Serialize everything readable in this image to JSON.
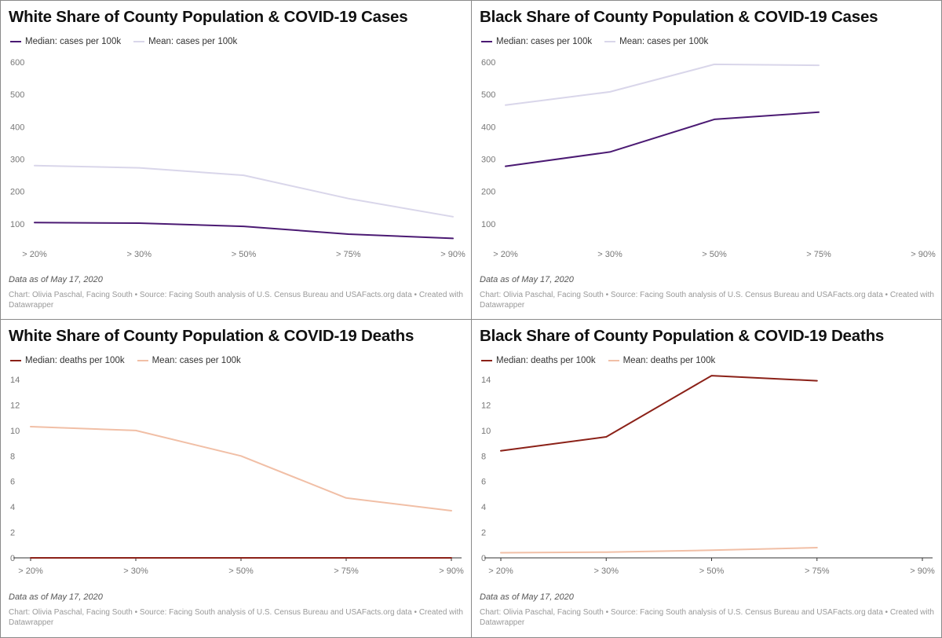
{
  "chart_data": [
    {
      "type": "line",
      "title": "White Share of County Population & COVID-19 Cases",
      "categories": [
        "> 20%",
        "> 30%",
        "> 50%",
        "> 75%",
        "> 90%"
      ],
      "ylim": [
        0,
        600
      ],
      "yticks": [
        600,
        500,
        400,
        300,
        200,
        100
      ],
      "series": [
        {
          "name": "Median: cases per 100k",
          "color": "#4b1a73",
          "values": [
            104,
            102,
            92,
            68,
            55
          ]
        },
        {
          "name": "Mean: cases per 100k",
          "color": "#d9d6ea",
          "values": [
            280,
            273,
            250,
            178,
            122
          ]
        }
      ],
      "dateline": "Data as of May 17, 2020",
      "credit": "Chart: Olivia Paschal, Facing South • Source: Facing South analysis of U.S. Census Bureau and USAFacts.org data • Created with Datawrapper"
    },
    {
      "type": "line",
      "title": "Black Share of County Population & COVID-19 Cases",
      "categories": [
        "> 20%",
        "> 30%",
        "> 50%",
        "> 75%",
        "> 90%"
      ],
      "ylim": [
        0,
        600
      ],
      "yticks": [
        600,
        500,
        400,
        300,
        200,
        100
      ],
      "series": [
        {
          "name": "Median: cases per 100k",
          "color": "#4b1a73",
          "values": [
            278,
            322,
            423,
            445,
            null
          ]
        },
        {
          "name": "Mean: cases per 100k",
          "color": "#d9d6ea",
          "values": [
            467,
            508,
            593,
            590,
            null
          ]
        }
      ],
      "dateline": "Data as of May 17, 2020",
      "credit": "Chart: Olivia Paschal, Facing South • Source: Facing South analysis of U.S. Census Bureau and USAFacts.org data • Created with Datawrapper"
    },
    {
      "type": "line",
      "title": "White Share of County Population & COVID-19 Deaths",
      "categories": [
        "> 20%",
        "> 30%",
        "> 50%",
        "> 75%",
        "> 90%"
      ],
      "ylim": [
        0,
        14
      ],
      "yticks": [
        14,
        12,
        10,
        8,
        6,
        4,
        2,
        0
      ],
      "series": [
        {
          "name": "Median: deaths per 100k",
          "color": "#8b2118",
          "values": [
            0,
            0,
            0,
            0,
            0
          ]
        },
        {
          "name": "Mean: cases per 100k",
          "color": "#f1bfa6",
          "values": [
            10.3,
            10.0,
            8.0,
            4.7,
            3.7
          ]
        }
      ],
      "dateline": "Data as of May 17, 2020",
      "credit": "Chart: Olivia Paschal, Facing South • Source: Facing South analysis of U.S. Census Bureau and USAFacts.org data • Created with Datawrapper"
    },
    {
      "type": "line",
      "title": "Black Share of County Population & COVID-19 Deaths",
      "categories": [
        "> 20%",
        "> 30%",
        "> 50%",
        "> 75%",
        "> 90%"
      ],
      "ylim": [
        0,
        14
      ],
      "yticks": [
        14,
        12,
        10,
        8,
        6,
        4,
        2,
        0
      ],
      "series": [
        {
          "name": "Median: deaths per 100k",
          "color": "#8b2118",
          "values": [
            8.4,
            9.5,
            14.3,
            13.9,
            null
          ]
        },
        {
          "name": "Mean: deaths per 100k",
          "color": "#f1bfa6",
          "values": [
            0.4,
            0.45,
            0.6,
            0.8,
            null
          ]
        }
      ],
      "dateline": "Data as of May 17, 2020",
      "credit": "Chart: Olivia Paschal, Facing South • Source: Facing South analysis of U.S. Census Bureau and USAFacts.org data • Created with Datawrapper"
    }
  ]
}
